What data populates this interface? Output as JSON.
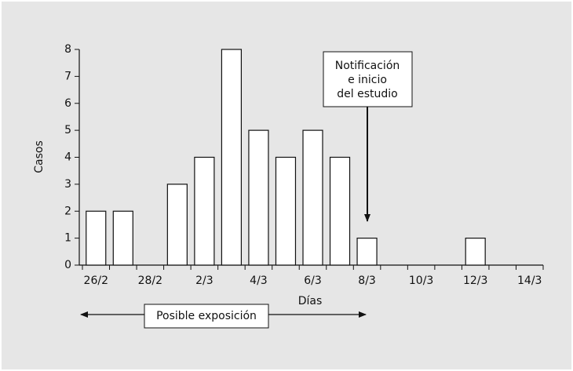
{
  "chart_data": {
    "type": "bar",
    "categories": [
      "26/2",
      null,
      "28/2",
      null,
      "2/3",
      null,
      "4/3",
      null,
      "6/3",
      null,
      "8/3",
      null,
      "10/3",
      null,
      "12/3",
      null,
      "14/3"
    ],
    "values": [
      2,
      2,
      0,
      3,
      4,
      8,
      5,
      4,
      5,
      4,
      1,
      0,
      0,
      0,
      1,
      0,
      0
    ],
    "color": "#ffffff",
    "ylim": [
      0,
      8
    ],
    "yticks": [
      0,
      1,
      2,
      3,
      4,
      5,
      6,
      7,
      8
    ],
    "y_label": "Casos",
    "x_label": "Días",
    "notification_label": [
      "Notificación",
      "e inicio",
      "del estudio"
    ],
    "exposure_label": "Posible exposición"
  }
}
